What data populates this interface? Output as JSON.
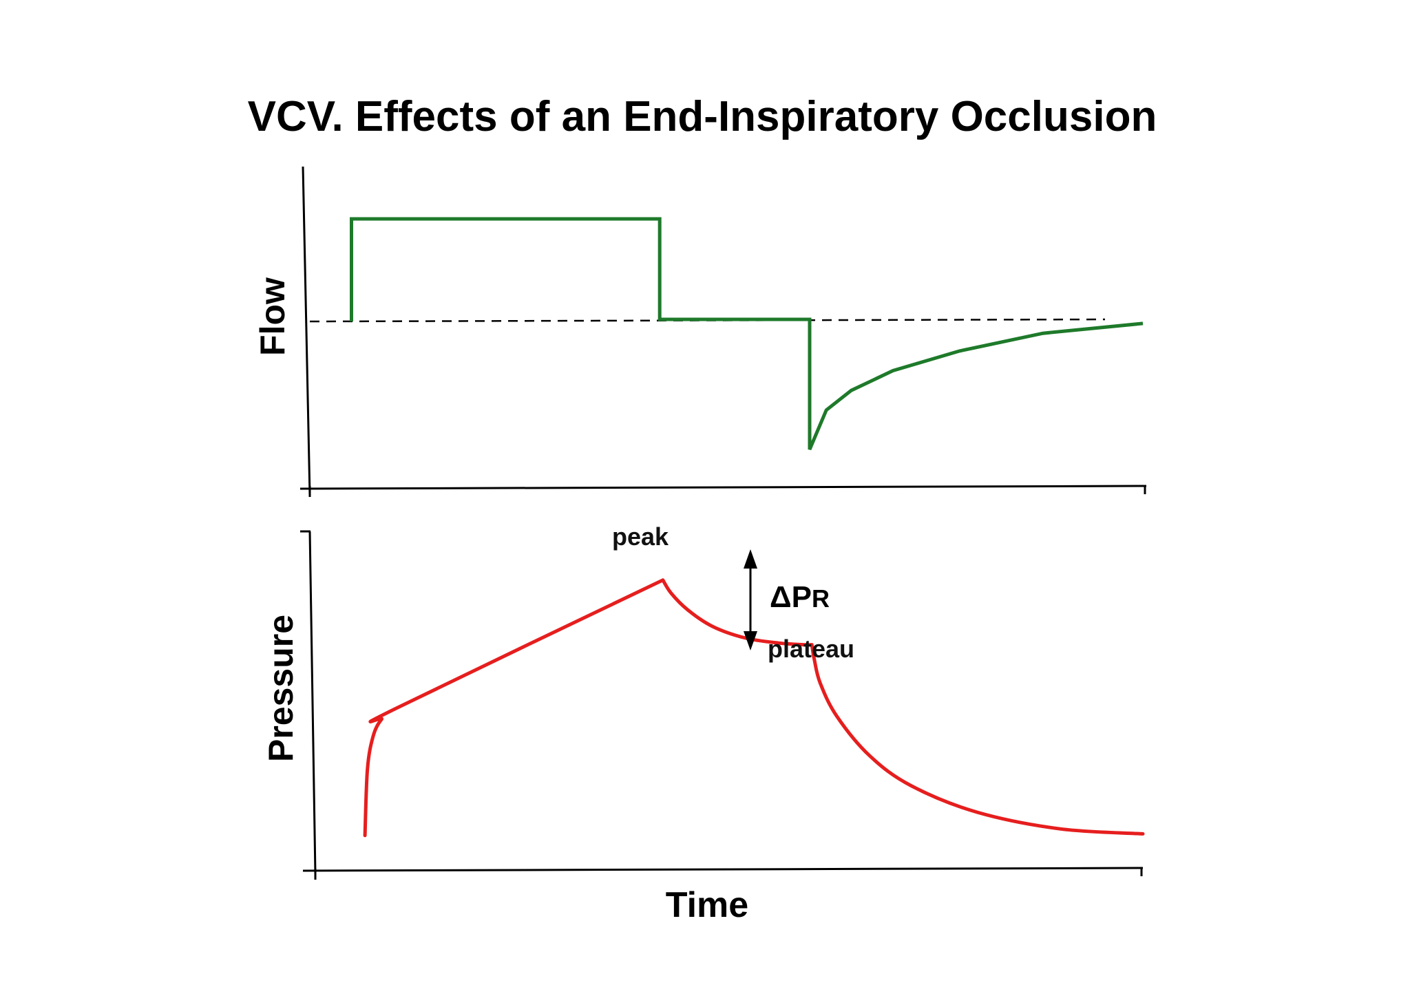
{
  "title": "VCV. Effects of an End-Inspiratory Occlusion",
  "colors": {
    "flow": "#1e7a2a",
    "pressure": "#e61e1e",
    "axes": "#000000"
  },
  "chart_data": [
    {
      "type": "line",
      "ylabel": "Flow",
      "xlabel": "",
      "grid": false,
      "xlim": [
        0,
        100
      ],
      "ylim": [
        -1.2,
        2.5
      ],
      "baseline": {
        "y": 0,
        "style": "dashed"
      },
      "series": [
        {
          "x": [
            5,
            5,
            42,
            42,
            60,
            60,
            62,
            65,
            70,
            78,
            88,
            100
          ],
          "values": [
            0,
            1.0,
            1.0,
            0.02,
            0.02,
            -1.3,
            -0.9,
            -0.7,
            -0.5,
            -0.3,
            -0.12,
            -0.02
          ]
        }
      ]
    },
    {
      "type": "line",
      "ylabel": "Pressure",
      "xlabel": "Time",
      "grid": false,
      "xlim": [
        0,
        100
      ],
      "ylim": [
        0,
        10
      ],
      "annotations": {
        "peak": "peak",
        "plateau": "plateau",
        "delta_symbol": "Δ",
        "delta_main": "P",
        "delta_sub": "R"
      },
      "series": [
        {
          "x": [
            6,
            6.3,
            7,
            8,
            9.5,
            42,
            43,
            45,
            48,
            52,
            56,
            59,
            60,
            60.3,
            61,
            63,
            67,
            72,
            80,
            90,
            100
          ],
          "values": [
            1.0,
            3.0,
            4.0,
            4.5,
            4.8,
            8.7,
            8.3,
            7.8,
            7.3,
            6.95,
            6.8,
            6.75,
            6.75,
            6.3,
            5.6,
            4.6,
            3.4,
            2.5,
            1.7,
            1.2,
            1.05
          ]
        }
      ]
    }
  ]
}
